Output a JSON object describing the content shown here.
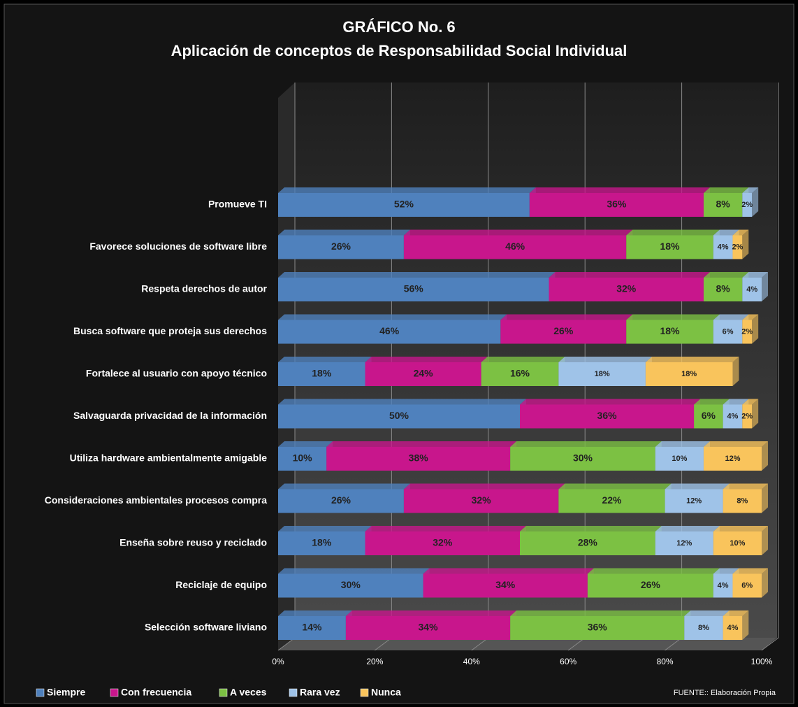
{
  "chart_data": {
    "type": "stacked_bar_horizontal",
    "title": "GRÁFICO No. 6",
    "subtitle": "Aplicación  de conceptos de Responsabilidad Social Individual",
    "source": "FUENTE::  Elaboración Propia",
    "categories": [
      "Promueve TI",
      "Favorece soluciones de software libre",
      "Respeta derechos de autor",
      "Busca software que proteja sus derechos",
      "Fortalece al usuario con apoyo técnico",
      "Salvaguarda privacidad de la información",
      "Utiliza hardware ambientalmente amigable",
      "Consideraciones ambientales procesos compra",
      "Enseña sobre reuso y reciclado",
      "Reciclaje de equipo",
      "Selección software liviano"
    ],
    "series": [
      {
        "name": "Siempre",
        "color": "#4f81bd",
        "values": [
          52,
          26,
          56,
          46,
          18,
          50,
          10,
          26,
          18,
          30,
          14
        ],
        "value_labels": [
          "52%",
          "26%",
          "56%",
          "46%",
          "18%",
          "50%",
          "10%",
          "26%",
          "18%",
          "30%",
          "14%"
        ]
      },
      {
        "name": "Con frecuencia",
        "color": "#c8168c",
        "values": [
          36,
          46,
          32,
          26,
          24,
          36,
          38,
          32,
          32,
          34,
          34
        ],
        "value_labels": [
          "36%",
          "46%",
          "32%",
          "26%",
          "24%",
          "36%",
          "38%",
          "32%",
          "32%",
          "34%",
          "34%"
        ]
      },
      {
        "name": "A veces",
        "color": "#7cc143",
        "values": [
          8,
          18,
          8,
          18,
          16,
          6,
          30,
          22,
          28,
          26,
          36
        ],
        "value_labels": [
          "8%",
          "18%",
          "8%",
          "18%",
          "16%",
          "6%",
          "30%",
          "22%",
          "28%",
          "26%",
          "36%"
        ]
      },
      {
        "name": "Rara vez",
        "color": "#9fc3e8",
        "values": [
          2,
          4,
          4,
          6,
          18,
          4,
          10,
          12,
          12,
          4,
          8
        ],
        "value_labels": [
          "2%",
          "4%",
          "4%",
          "6%",
          "18%",
          "4%",
          "10%",
          "12%",
          "12%",
          "4%",
          "8%"
        ]
      },
      {
        "name": "Nunca",
        "color": "#f9c45c",
        "values": [
          null,
          2,
          null,
          2,
          18,
          2,
          12,
          8,
          10,
          6,
          4
        ],
        "value_labels": [
          null,
          "2%",
          null,
          "2%",
          "18%",
          "2%",
          "12%",
          "8%",
          "10%",
          "6%",
          "4%"
        ]
      }
    ],
    "xlim": [
      0,
      100
    ],
    "xticks": [
      {
        "value": 0,
        "label": "0%"
      },
      {
        "value": 20,
        "label": "20%"
      },
      {
        "value": 40,
        "label": "40%"
      },
      {
        "value": 60,
        "label": "60%"
      },
      {
        "value": 80,
        "label": "80%"
      },
      {
        "value": 100,
        "label": "100%"
      }
    ],
    "grid": true,
    "legend": "bottom"
  }
}
